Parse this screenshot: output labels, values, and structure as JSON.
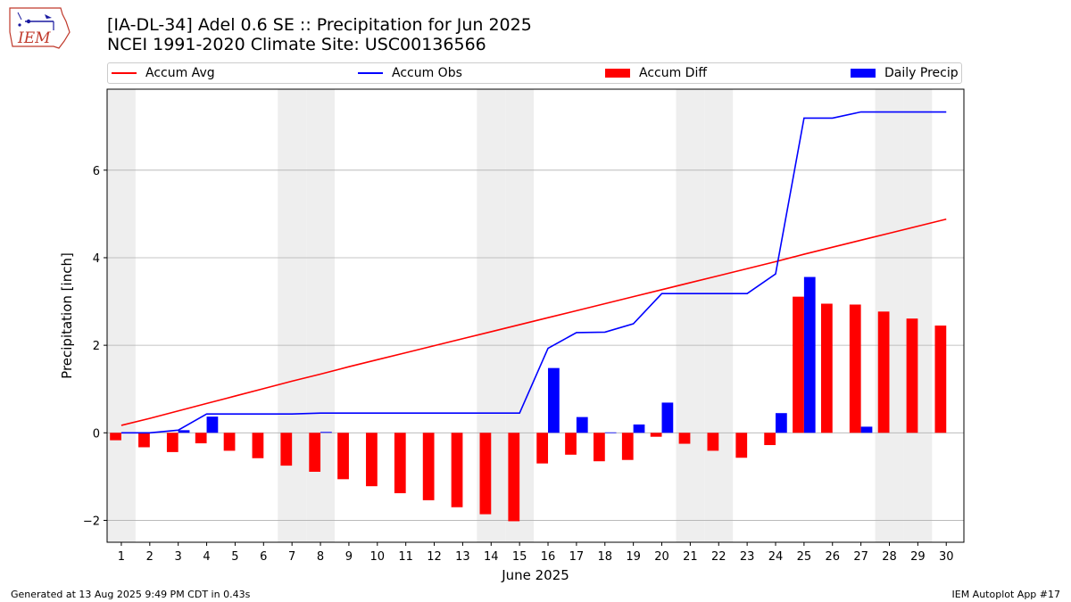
{
  "header": {
    "title_line1": "[IA-DL-34] Adel 0.6 SE :: Precipitation for Jun 2025",
    "title_line2": "NCEI 1991-2020 Climate Site: USC00136566"
  },
  "logo": {
    "text": "IEM"
  },
  "legend": {
    "accum_avg": "Accum Avg",
    "accum_obs": "Accum Obs",
    "accum_diff": "Accum Diff",
    "daily_precip": "Daily Precip"
  },
  "footer": {
    "left": "Generated at 13 Aug 2025 9:49 PM CDT in 0.43s",
    "right": "IEM Autoplot App #17"
  },
  "colors": {
    "avg": "#ff0000",
    "obs": "#0000ff",
    "diff": "#ff0000",
    "daily": "#0000ff",
    "weekend": "#eeeeee",
    "grid": "#b0b0b0"
  },
  "chart_data": {
    "type": "bar",
    "xlabel": "June 2025",
    "ylabel": "Precipitation [inch]",
    "ylim": [
      -2.5,
      7.85
    ],
    "yticks": [
      -2,
      0,
      2,
      4,
      6
    ],
    "ytick_labels": [
      "−2",
      "0",
      "2",
      "4",
      "6"
    ],
    "categories": [
      "1",
      "2",
      "3",
      "4",
      "5",
      "6",
      "7",
      "8",
      "9",
      "10",
      "11",
      "12",
      "13",
      "14",
      "15",
      "16",
      "17",
      "18",
      "19",
      "20",
      "21",
      "22",
      "23",
      "24",
      "25",
      "26",
      "27",
      "28",
      "29",
      "30"
    ],
    "weekend_days": [
      1,
      7,
      8,
      14,
      15,
      21,
      22,
      28,
      29
    ],
    "grid": true,
    "legend_placement": "top",
    "series": [
      {
        "name": "Accum Avg",
        "kind": "line",
        "values": [
          0.17,
          0.33,
          0.5,
          0.67,
          0.84,
          1.01,
          1.18,
          1.34,
          1.51,
          1.67,
          1.83,
          1.99,
          2.15,
          2.31,
          2.47,
          2.63,
          2.79,
          2.95,
          3.11,
          3.27,
          3.43,
          3.59,
          3.75,
          3.91,
          4.08,
          4.24,
          4.4,
          4.56,
          4.72,
          4.88
        ]
      },
      {
        "name": "Accum Obs",
        "kind": "line",
        "values": [
          0.0,
          0.0,
          0.06,
          0.43,
          0.43,
          0.43,
          0.43,
          0.45,
          0.45,
          0.45,
          0.45,
          0.45,
          0.45,
          0.45,
          0.45,
          1.93,
          2.29,
          2.3,
          2.49,
          3.18,
          3.18,
          3.18,
          3.18,
          3.63,
          7.19,
          7.19,
          7.33,
          7.33,
          7.33,
          7.33
        ]
      },
      {
        "name": "Accum Diff",
        "kind": "bar",
        "values": [
          -0.17,
          -0.33,
          -0.44,
          -0.24,
          -0.41,
          -0.58,
          -0.75,
          -0.89,
          -1.06,
          -1.22,
          -1.38,
          -1.54,
          -1.7,
          -1.86,
          -2.02,
          -0.7,
          -0.5,
          -0.65,
          -0.62,
          -0.09,
          -0.25,
          -0.41,
          -0.57,
          -0.28,
          3.11,
          2.95,
          2.93,
          2.77,
          2.61,
          2.45
        ]
      },
      {
        "name": "Daily Precip",
        "kind": "bar",
        "values": [
          0.0,
          0.0,
          0.06,
          0.37,
          0.0,
          0.0,
          0.0,
          0.02,
          0.0,
          0.0,
          0.0,
          0.0,
          0.0,
          0.0,
          0.0,
          1.48,
          0.36,
          0.01,
          0.19,
          0.69,
          0.0,
          0.0,
          0.0,
          0.45,
          3.56,
          0.0,
          0.14,
          0.0,
          0.0,
          0.0
        ]
      }
    ]
  }
}
